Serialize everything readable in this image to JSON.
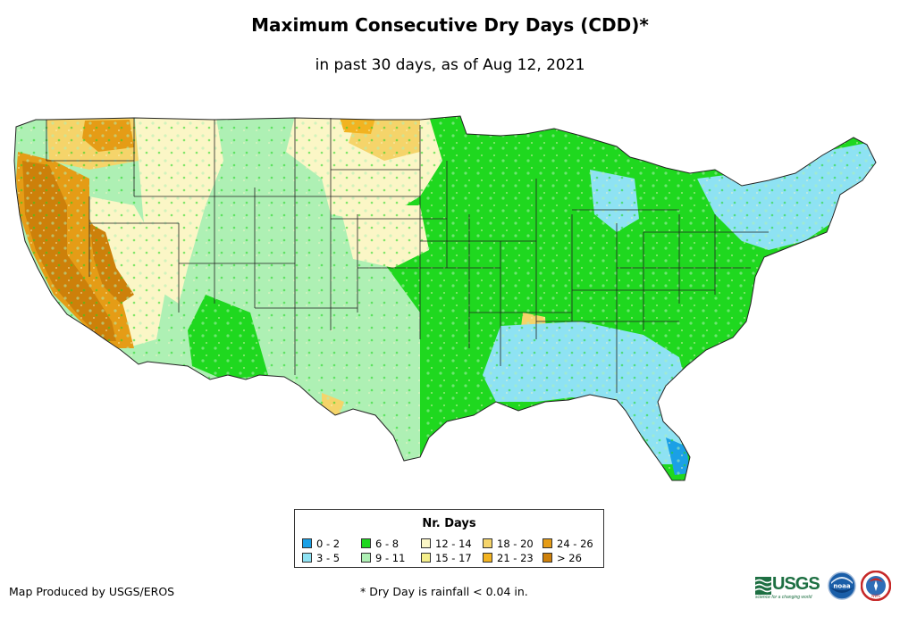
{
  "title": "Maximum Consecutive Dry Days (CDD)*",
  "subtitle": "in past 30 days, as of Aug 12, 2021",
  "legend": {
    "title": "Nr. Days",
    "items": [
      {
        "label": "0 - 2",
        "color": "#1aa0e6"
      },
      {
        "label": "3 - 5",
        "color": "#8ee2f3"
      },
      {
        "label": "6 - 8",
        "color": "#1fd81f"
      },
      {
        "label": "9 - 11",
        "color": "#aef0b4"
      },
      {
        "label": "12 - 14",
        "color": "#fbf6c6"
      },
      {
        "label": "15 - 17",
        "color": "#f4ee8a"
      },
      {
        "label": "18 - 20",
        "color": "#f5d46a"
      },
      {
        "label": "21 - 23",
        "color": "#f2b321"
      },
      {
        "label": "24 - 26",
        "color": "#e59c16"
      },
      {
        "label": "> 26",
        "color": "#cd800a"
      }
    ]
  },
  "map": {
    "region": "Contiguous United States",
    "dominant_classes": {
      "west_coast": "> 26",
      "great_basin_southwest": "9 - 11",
      "northern_plains": "12 - 14",
      "midwest": "6 - 8",
      "southeast": "3 - 5",
      "florida_south": "0 - 2"
    }
  },
  "footer": {
    "credit": "Map Produced by USGS/EROS",
    "footnote": "* Dry Day is rainfall < 0.04 in."
  },
  "logos": {
    "usgs": "USGS",
    "usgs_tagline": "science for a changing world",
    "noaa": "noaa",
    "nws": "NWS"
  }
}
